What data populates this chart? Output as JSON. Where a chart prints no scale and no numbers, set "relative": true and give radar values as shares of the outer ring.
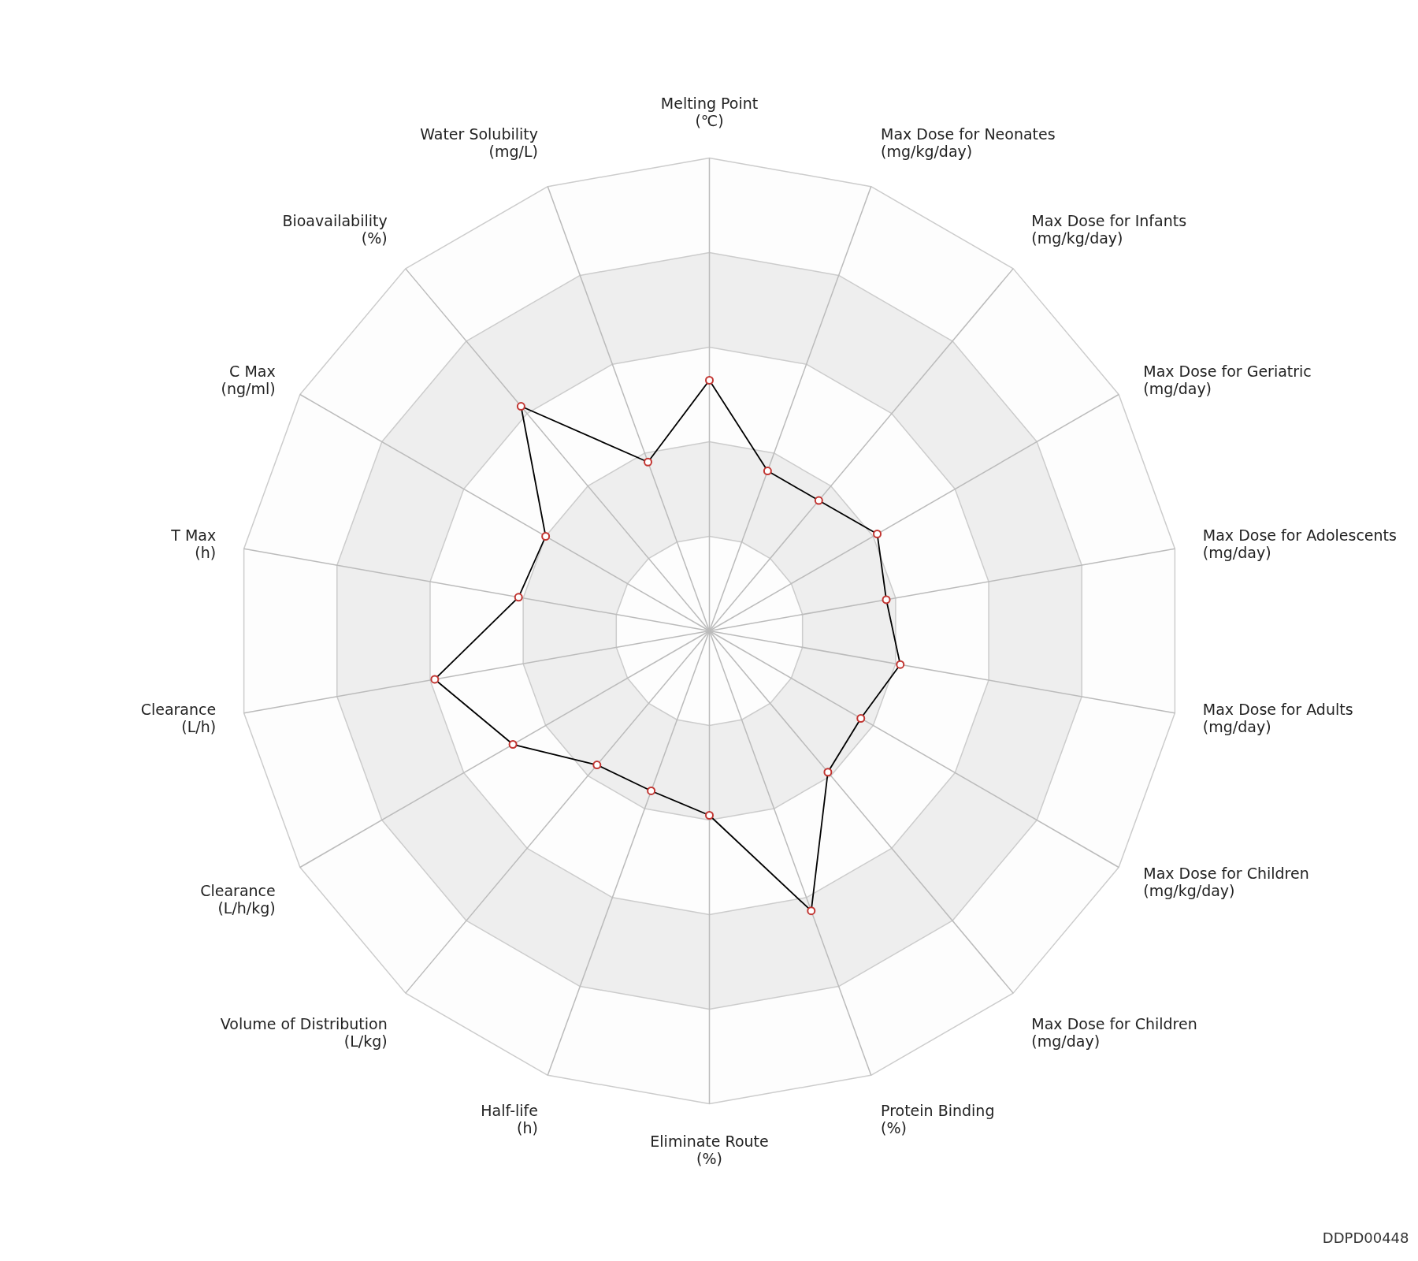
{
  "chart_data": {
    "type": "radar",
    "relative": true,
    "grid": true,
    "marker": "circle",
    "line_style": "solid",
    "categories": [
      "Melting Point\n(℃)",
      "Max Dose for Neonates\n(mg/kg/day)",
      "Max Dose for Infants\n(mg/kg/day)",
      "Max Dose for Geriatric\n(mg/day)",
      "Max Dose for Adolescents\n(mg/day)",
      "Max Dose for Adults\n(mg/day)",
      "Max Dose for Children\n(mg/kg/day)",
      "Max Dose for Children\n(mg/day)",
      "Protein Binding\n(%)",
      "Eliminate Route\n(%)",
      "Half-life\n(h)",
      "Volume of Distribution\n(L/kg)",
      "Clearance\n(L/h/kg)",
      "Clearance\n(L/h)",
      "T Max\n(h)",
      "C Max\n(ng/ml)",
      "Bioavailability\n(%)",
      "Water Solubility\n(mg/L)"
    ],
    "series": [
      {
        "color": "#000000",
        "values": [
          0.53,
          0.36,
          0.36,
          0.41,
          0.38,
          0.41,
          0.37,
          0.39,
          0.63,
          0.39,
          0.36,
          0.37,
          0.48,
          0.59,
          0.41,
          0.4,
          0.62,
          0.38
        ]
      }
    ],
    "annotations": [
      "DDPD00448"
    ]
  }
}
